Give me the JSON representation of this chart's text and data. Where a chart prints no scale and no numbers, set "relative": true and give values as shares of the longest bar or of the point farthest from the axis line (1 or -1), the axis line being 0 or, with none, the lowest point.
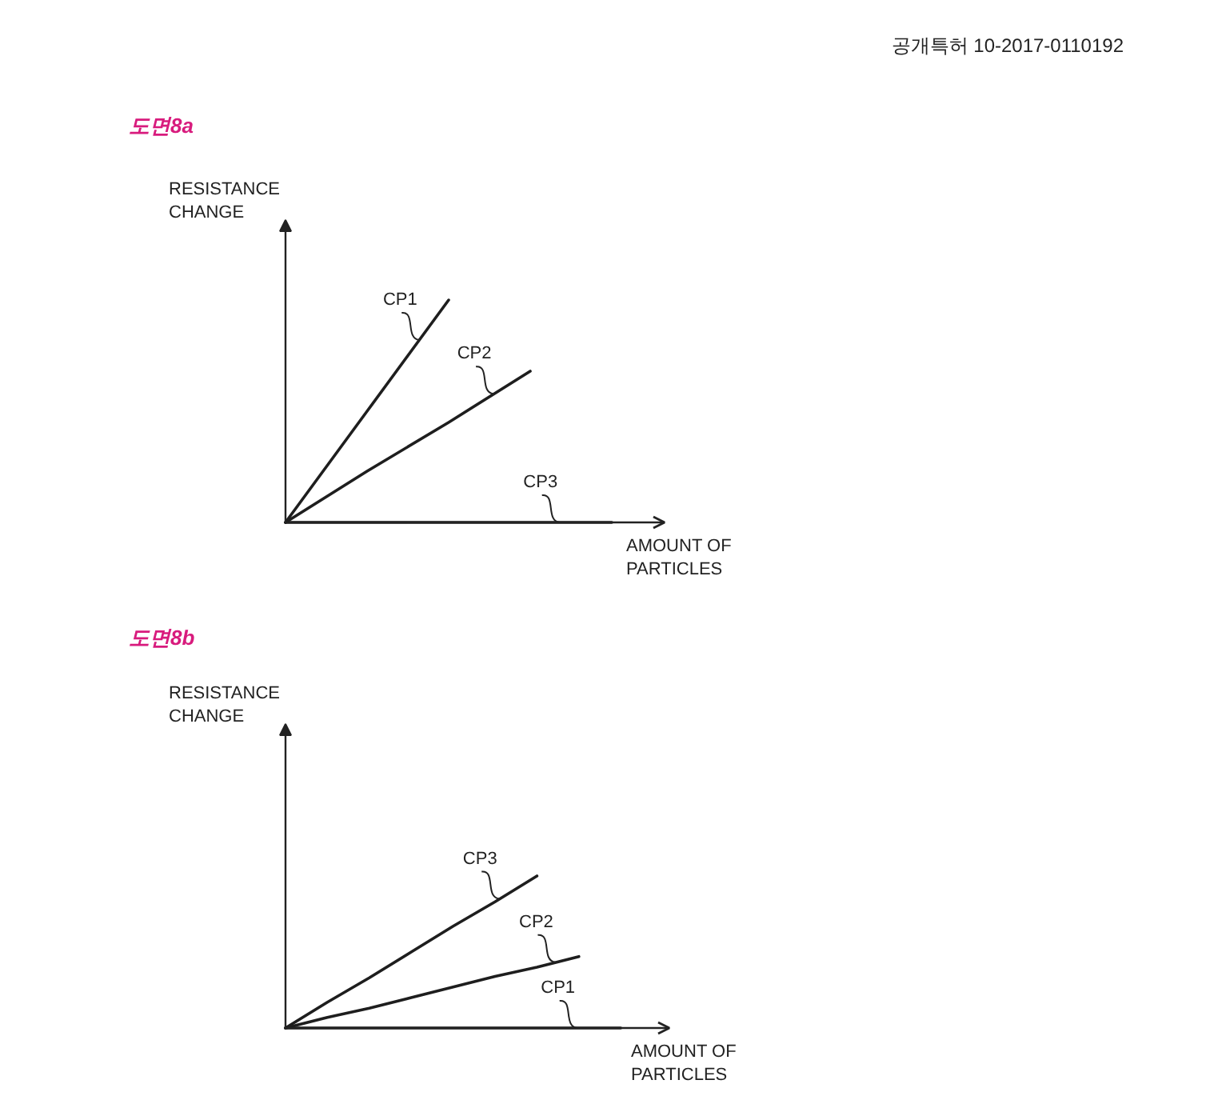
{
  "chart_data": [
    {
      "type": "line",
      "title": "도면8a",
      "xlabel": "AMOUNT OF PARTICLES",
      "ylabel": "RESISTANCE CHANGE",
      "annotations": [
        "공개특허 10-2017-0110192"
      ],
      "relative": true,
      "tick_labels": false,
      "categories": [
        null,
        null,
        null,
        null,
        null
      ],
      "series": [
        {
          "name": "CP1",
          "color": "#1e1e1e",
          "values": [
            0,
            0.5,
            1,
            null,
            null
          ]
        },
        {
          "name": "CP2",
          "color": "#1e1e1e",
          "values": [
            0,
            0.23,
            0.45,
            0.68,
            null
          ]
        },
        {
          "name": "CP3",
          "color": "#1e1e1e",
          "values": [
            0,
            0,
            0,
            0,
            0
          ]
        }
      ]
    },
    {
      "type": "line",
      "title": "도면8b",
      "xlabel": "AMOUNT OF PARTICLES",
      "ylabel": "RESISTANCE CHANGE",
      "relative": true,
      "tick_labels": false,
      "categories": [
        null,
        null,
        null,
        null,
        null,
        null,
        null,
        null,
        null
      ],
      "series": [
        {
          "name": "CP3",
          "color": "#1e1e1e",
          "values": [
            0,
            0.17,
            0.33,
            0.5,
            0.67,
            0.83,
            1,
            null,
            null
          ]
        },
        {
          "name": "CP2",
          "color": "#1e1e1e",
          "values": [
            0,
            0.07,
            0.13,
            0.2,
            0.27,
            0.34,
            0.4,
            0.47,
            null
          ]
        },
        {
          "name": "CP1",
          "color": "#1e1e1e",
          "values": [
            0,
            0,
            0,
            0,
            0,
            0,
            0,
            0,
            0
          ]
        }
      ]
    }
  ]
}
